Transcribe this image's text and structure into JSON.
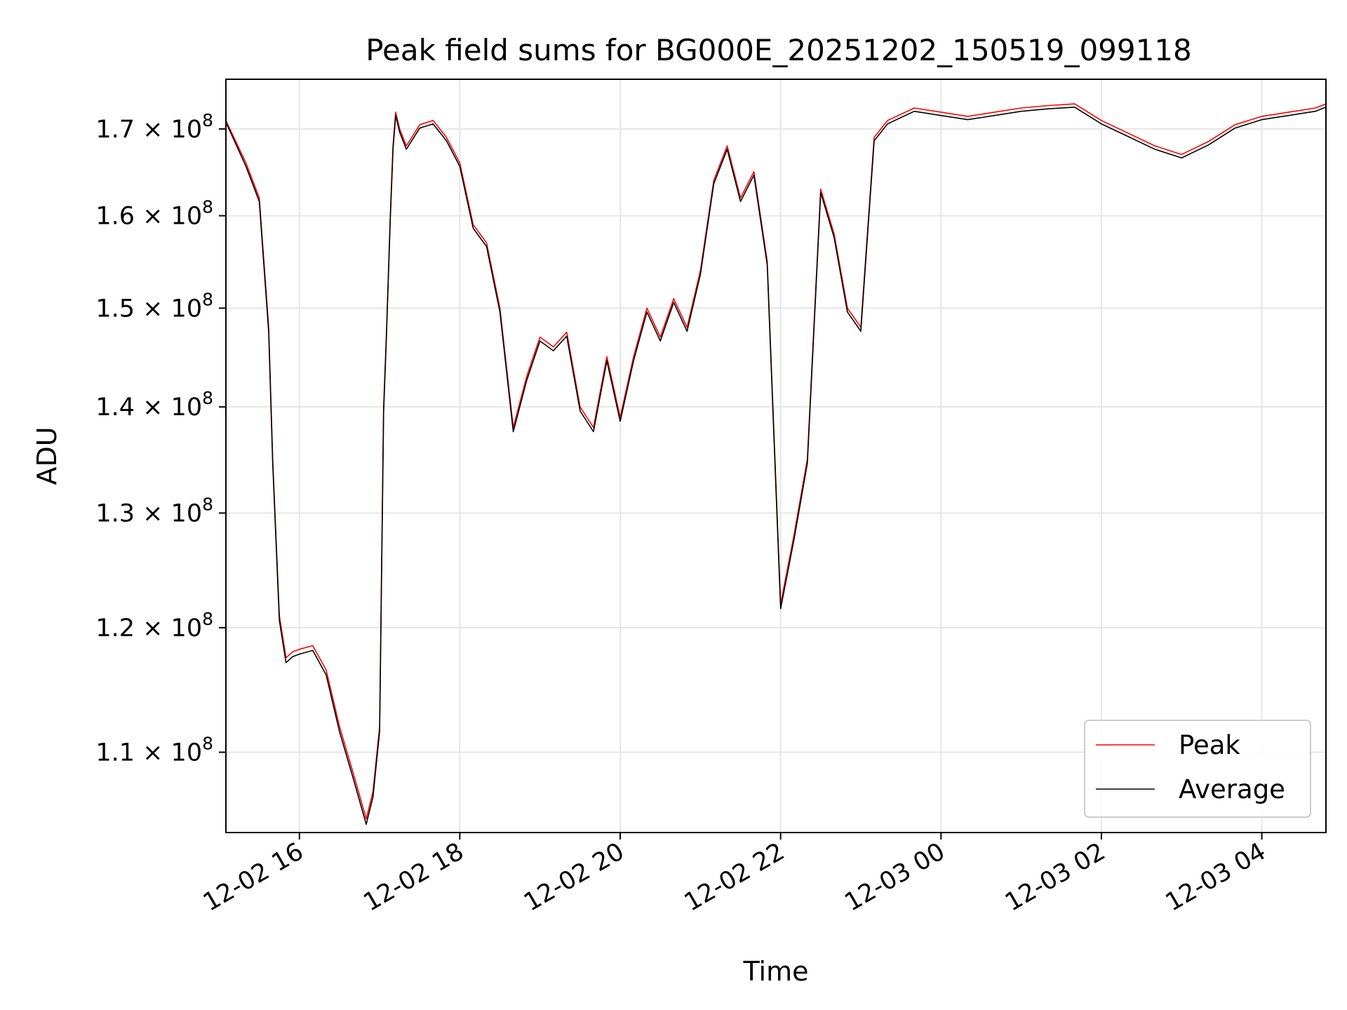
{
  "chart_data": {
    "type": "line",
    "title": "Peak field sums for BG000E_20251202_150519_099118",
    "xlabel": "Time",
    "ylabel": "ADU",
    "yscale": "log",
    "grid": true,
    "legend_position": "lower-right",
    "xlim": [
      "12-02 15:05",
      "12-03 04:48"
    ],
    "ylim": [
      104000000,
      176000000
    ],
    "x_ticks": [
      "12-02 16",
      "12-02 18",
      "12-02 20",
      "12-02 22",
      "12-03 00",
      "12-03 02",
      "12-03 04"
    ],
    "y_ticks": [
      {
        "value": 110000000,
        "mantissa": "1.1",
        "exp": "8"
      },
      {
        "value": 120000000,
        "mantissa": "1.2",
        "exp": "8"
      },
      {
        "value": 130000000,
        "mantissa": "1.3",
        "exp": "8"
      },
      {
        "value": 140000000,
        "mantissa": "1.4",
        "exp": "8"
      },
      {
        "value": 150000000,
        "mantissa": "1.5",
        "exp": "8"
      },
      {
        "value": 160000000,
        "mantissa": "1.6",
        "exp": "8"
      },
      {
        "value": 170000000,
        "mantissa": "1.7",
        "exp": "8"
      }
    ],
    "x": [
      "12-02 15:05",
      "12-02 15:20",
      "12-02 15:30",
      "12-02 15:37",
      "12-02 15:40",
      "12-02 15:45",
      "12-02 15:50",
      "12-02 15:55",
      "12-02 16:00",
      "12-02 16:10",
      "12-02 16:20",
      "12-02 16:30",
      "12-02 16:40",
      "12-02 16:50",
      "12-02 16:55",
      "12-02 17:00",
      "12-02 17:03",
      "12-02 17:05",
      "12-02 17:08",
      "12-02 17:10",
      "12-02 17:12",
      "12-02 17:15",
      "12-02 17:20",
      "12-02 17:30",
      "12-02 17:40",
      "12-02 17:50",
      "12-02 18:00",
      "12-02 18:10",
      "12-02 18:20",
      "12-02 18:30",
      "12-02 18:40",
      "12-02 18:50",
      "12-02 18:55",
      "12-02 19:00",
      "12-02 19:10",
      "12-02 19:20",
      "12-02 19:30",
      "12-02 19:40",
      "12-02 19:50",
      "12-02 20:00",
      "12-02 20:10",
      "12-02 20:20",
      "12-02 20:30",
      "12-02 20:40",
      "12-02 20:50",
      "12-02 21:00",
      "12-02 21:10",
      "12-02 21:20",
      "12-02 21:30",
      "12-02 21:40",
      "12-02 21:50",
      "12-02 22:00",
      "12-02 22:10",
      "12-02 22:20",
      "12-02 22:30",
      "12-02 22:40",
      "12-02 22:50",
      "12-02 23:00",
      "12-02 23:10",
      "12-02 23:20",
      "12-02 23:40",
      "12-03 00:00",
      "12-03 00:20",
      "12-03 00:40",
      "12-03 01:00",
      "12-03 01:20",
      "12-03 01:40",
      "12-03 02:00",
      "12-03 02:20",
      "12-03 02:40",
      "12-03 03:00",
      "12-03 03:20",
      "12-03 03:40",
      "12-03 04:00",
      "12-03 04:20",
      "12-03 04:40",
      "12-03 04:48"
    ],
    "series": [
      {
        "name": "Peak",
        "color": "#ff0000",
        "values": [
          171000000,
          166000000,
          162000000,
          148000000,
          135000000,
          121000000,
          117500000,
          118000000,
          118200000,
          118500000,
          116500000,
          112000000,
          108500000,
          105000000,
          107000000,
          112000000,
          140000000,
          147000000,
          160000000,
          168000000,
          172000000,
          170000000,
          168000000,
          170500000,
          171000000,
          169000000,
          166000000,
          159000000,
          157000000,
          150000000,
          138000000,
          143000000,
          145000000,
          147000000,
          146000000,
          147500000,
          140000000,
          138000000,
          145000000,
          139000000,
          145000000,
          150000000,
          147000000,
          151000000,
          148000000,
          154000000,
          164000000,
          168000000,
          162000000,
          165000000,
          155000000,
          122000000,
          128000000,
          135000000,
          163000000,
          158000000,
          150000000,
          148000000,
          169000000,
          171000000,
          172500000,
          172000000,
          171500000,
          172000000,
          172500000,
          172800000,
          173000000,
          171000000,
          169500000,
          168000000,
          167000000,
          168500000,
          170500000,
          171500000,
          172000000,
          172500000,
          173000000
        ]
      },
      {
        "name": "Average",
        "color": "#000000",
        "values": [
          170800000,
          165600000,
          161600000,
          147500000,
          134600000,
          120600000,
          117100000,
          117600000,
          117800000,
          118100000,
          116100000,
          111600000,
          108100000,
          104600000,
          106600000,
          111600000,
          139500000,
          146600000,
          159600000,
          167600000,
          171600000,
          169600000,
          167600000,
          170100000,
          170600000,
          168600000,
          165600000,
          158600000,
          156600000,
          149600000,
          137600000,
          142600000,
          144600000,
          146600000,
          145600000,
          147100000,
          139600000,
          137600000,
          144600000,
          138600000,
          144600000,
          149600000,
          146600000,
          150600000,
          147600000,
          153600000,
          163600000,
          167600000,
          161600000,
          164600000,
          154600000,
          121600000,
          127600000,
          134600000,
          162600000,
          157600000,
          149600000,
          147600000,
          168600000,
          170600000,
          172100000,
          171600000,
          171100000,
          171600000,
          172100000,
          172400000,
          172600000,
          170600000,
          169100000,
          167600000,
          166600000,
          168100000,
          170100000,
          171100000,
          171600000,
          172100000,
          172600000
        ]
      }
    ]
  }
}
